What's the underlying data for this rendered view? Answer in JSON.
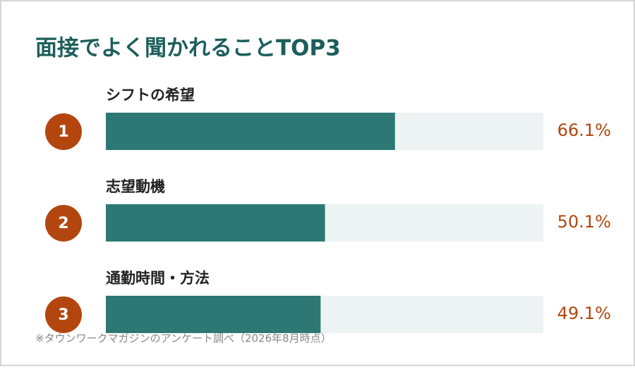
{
  "chart_data": {
    "type": "bar",
    "orientation": "horizontal",
    "title": "面接でよく聞かれることTOP3",
    "categories": [
      "シフトの希望",
      "志望動機",
      "通勤時間・方法"
    ],
    "ranks": [
      1,
      2,
      3
    ],
    "values": [
      66.1,
      50.1,
      49.1
    ],
    "value_labels": [
      "66.1%",
      "50.1%",
      "49.1%"
    ],
    "xlim": [
      0,
      100
    ],
    "color": "#2d7874",
    "track_color": "#edf3f3",
    "rank_color": "#b3460f",
    "value_color": "#b3460f",
    "title_color": "#1d5e5b",
    "source": "※タウンワークマガジンのアンケート調べ（2026年8月時点）"
  }
}
